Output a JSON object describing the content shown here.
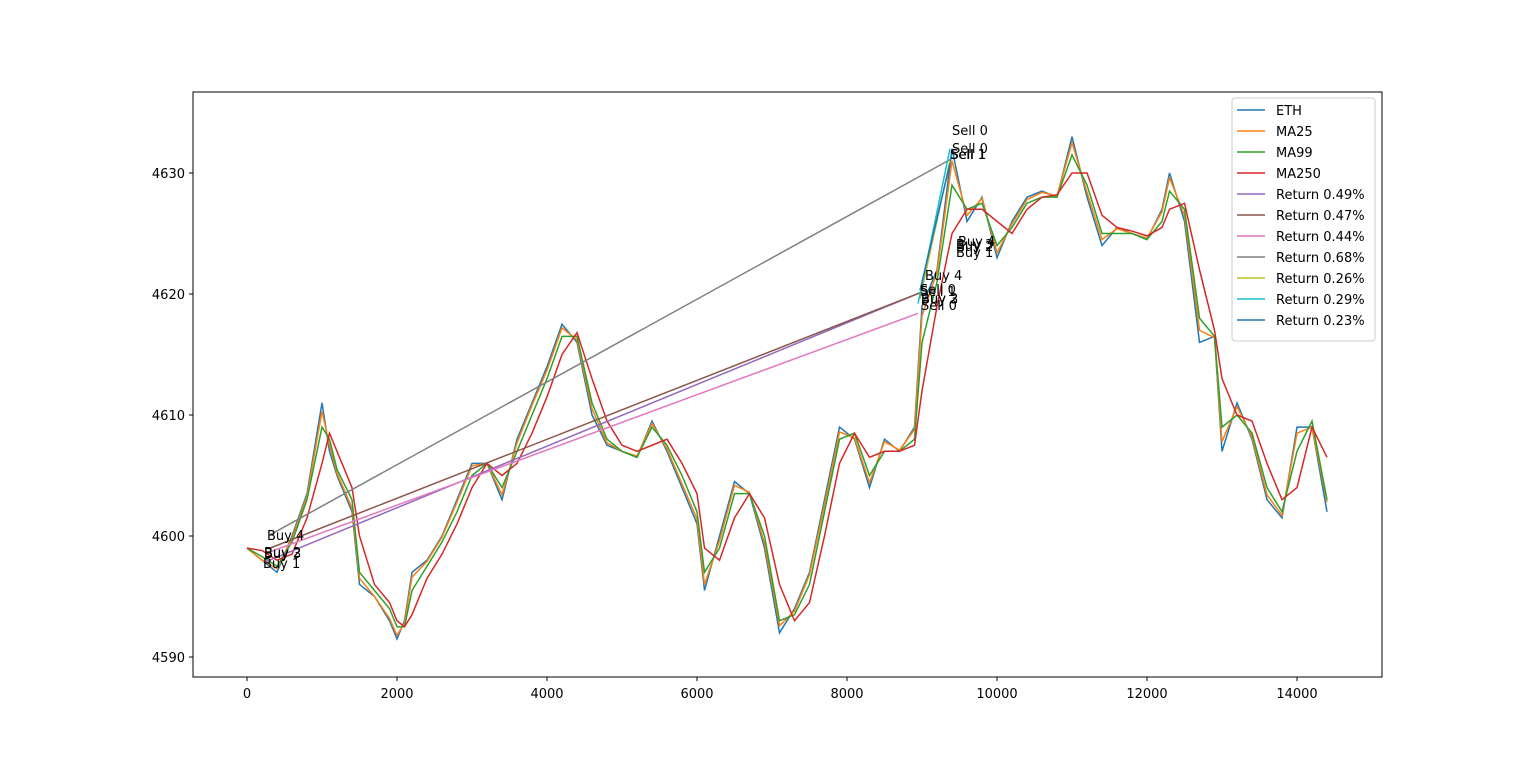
{
  "chart_data": {
    "type": "line",
    "x": [
      0,
      200,
      400,
      600,
      800,
      1000,
      1100,
      1200,
      1400,
      1500,
      1700,
      1900,
      2000,
      2100,
      2200,
      2400,
      2600,
      2800,
      3000,
      3200,
      3400,
      3600,
      3800,
      4000,
      4200,
      4400,
      4600,
      4800,
      5000,
      5200,
      5400,
      5600,
      5800,
      6000,
      6100,
      6300,
      6500,
      6700,
      6900,
      7100,
      7300,
      7500,
      7700,
      7900,
      8100,
      8300,
      8500,
      8700,
      8900,
      9000,
      9200,
      9400,
      9600,
      9800,
      10000,
      10200,
      10400,
      10600,
      10800,
      11000,
      11200,
      11400,
      11600,
      11800,
      12000,
      12200,
      12300,
      12500,
      12700,
      12900,
      13000,
      13200,
      13400,
      13600,
      13800,
      14000,
      14200,
      14400
    ],
    "series": [
      {
        "name": "ETH",
        "color": "#1f77b4",
        "values": [
          4599,
          4598,
          4597,
          4600,
          4603.5,
          4611,
          4607,
          4605,
          4602,
          4596,
          4595,
          4593,
          4591.5,
          4593,
          4597,
          4598,
          4600,
          4603,
          4606,
          4606,
          4603,
          4608,
          4611,
          4614,
          4617.5,
          4616,
          4610,
          4607.5,
          4607,
          4606.5,
          4609.5,
          4607,
          4604,
          4601,
          4595.5,
          4600,
          4604.5,
          4603.5,
          4599,
          4592,
          4594,
          4597,
          4603,
          4609,
          4608,
          4604,
          4608,
          4607,
          4609,
          4619,
          4622,
          4632,
          4626,
          4628,
          4623,
          4626,
          4628,
          4628.5,
          4628,
          4633,
          4628,
          4624,
          4625.5,
          4625,
          4624.5,
          4627,
          4630,
          4626,
          4616,
          4616.5,
          4607,
          4611,
          4608,
          4603,
          4601.5,
          4609,
          4609,
          4602
        ]
      },
      {
        "name": "MA25",
        "color": "#ff7f0e",
        "values": [
          4599,
          4598,
          4597.3,
          4599.8,
          4603.3,
          4610.3,
          4607.5,
          4605.2,
          4602.3,
          4596.5,
          4595,
          4593.2,
          4591.8,
          4592.8,
          4596.6,
          4597.9,
          4599.9,
          4602.8,
          4605.8,
          4606,
          4603.4,
          4607.7,
          4610.8,
          4613.7,
          4617.2,
          4616.2,
          4610.5,
          4607.7,
          4607,
          4606.6,
          4609.3,
          4607.2,
          4604.3,
          4601.4,
          4596,
          4599.6,
          4604.2,
          4603.6,
          4599.4,
          4592.6,
          4593.8,
          4596.8,
          4602.6,
          4608.6,
          4608.1,
          4604.4,
          4607.8,
          4607.1,
          4608.8,
          4618.2,
          4621.8,
          4631,
          4626.5,
          4627.9,
          4623.4,
          4625.8,
          4627.8,
          4628.4,
          4628.1,
          4632.5,
          4628.4,
          4624.5,
          4625.4,
          4625,
          4624.6,
          4626.8,
          4629.6,
          4626.5,
          4617,
          4616.4,
          4607.8,
          4610.7,
          4608.2,
          4603.4,
          4601.7,
          4608.5,
          4609,
          4602.8
        ]
      },
      {
        "name": "MA99",
        "color": "#2ca02c",
        "values": [
          4599,
          4598.3,
          4597.5,
          4599.5,
          4603,
          4609,
          4608,
          4605.5,
          4603,
          4597,
          4595.5,
          4594,
          4592.5,
          4592.5,
          4595.5,
          4597.5,
          4599.5,
          4602,
          4605,
          4606,
          4604,
          4607,
          4610,
          4613,
          4616.5,
          4616.5,
          4611,
          4608,
          4607,
          4606.5,
          4609,
          4607.5,
          4605,
          4602,
          4597,
          4599,
          4603.5,
          4603.5,
          4600,
          4593,
          4593.5,
          4596,
          4602,
          4608,
          4608.5,
          4605,
          4607,
          4607,
          4608,
          4616,
          4621,
          4629,
          4627,
          4627.5,
          4624,
          4625.5,
          4627.5,
          4628,
          4628,
          4631.5,
          4629,
          4625,
          4625,
          4625,
          4624.5,
          4626,
          4628.5,
          4627,
          4618,
          4616.5,
          4609,
          4610,
          4608.5,
          4604,
          4602,
          4607,
          4609.5,
          4603
        ]
      },
      {
        "name": "MA250",
        "color": "#d62728",
        "values": [
          4599,
          4598.8,
          4598,
          4598.5,
          4601.5,
          4606,
          4608.5,
          4607,
          4604,
          4600,
          4596,
          4594.5,
          4593,
          4592.5,
          4593.5,
          4596.5,
          4598.5,
          4601,
          4604,
          4606,
          4605,
          4606,
          4608.5,
          4611.5,
          4615,
          4616.8,
          4613,
          4609.5,
          4607.5,
          4607,
          4607.5,
          4608,
          4606,
          4603.5,
          4599,
          4598,
          4601.5,
          4603.5,
          4601.5,
          4596,
          4593,
          4594.5,
          4600,
          4606,
          4608.5,
          4606.5,
          4607,
          4607,
          4607.5,
          4612,
          4619,
          4625,
          4627,
          4627,
          4626,
          4625,
          4627,
          4628,
          4628.2,
          4630,
          4630,
          4626.5,
          4625.5,
          4625.2,
          4624.8,
          4625.5,
          4627,
          4627.5,
          4622,
          4617,
          4613,
          4610,
          4609.5,
          4606,
          4603,
          4604,
          4609,
          4606.5
        ]
      },
      {
        "name": "Return 0.49%",
        "color": "#9467bd",
        "x": [
          240,
          8973
        ],
        "values": [
          4597.85,
          4620.1
        ]
      },
      {
        "name": "Return 0.47%",
        "color": "#8c564b",
        "x": [
          307,
          8973
        ],
        "values": [
          4599.0,
          4620.1
        ]
      },
      {
        "name": "Return 0.44%",
        "color": "#e377c2",
        "x": [
          267,
          8947
        ],
        "values": [
          4598.6,
          4618.4
        ]
      },
      {
        "name": "Return 0.68%",
        "color": "#7f7f7f",
        "x": [
          307,
          9373
        ],
        "values": [
          4600.1,
          4631.1
        ]
      },
      {
        "name": "Return 0.26%",
        "color": "#bcbd22",
        "x": [
          8973,
          9373
        ],
        "values": [
          4619.6,
          4631.0
        ]
      },
      {
        "name": "Return 0.29%",
        "color": "#17becf",
        "x": [
          8947,
          9373
        ],
        "values": [
          4619.2,
          4632.0
        ]
      },
      {
        "name": "Return 0.23%",
        "color": "#1f77b4",
        "x": [
          8973,
          9373
        ],
        "values": [
          4620.3,
          4630.8
        ]
      }
    ],
    "annotations": [
      {
        "text": "Buy 1",
        "x": 213,
        "y": 4597.36
      },
      {
        "text": "Buy 2",
        "x": 227,
        "y": 4598.26
      },
      {
        "text": "Buy 3",
        "x": 227,
        "y": 4598.2
      },
      {
        "text": "Buy 4",
        "x": 267,
        "y": 4599.67
      },
      {
        "text": "Sell 0",
        "x": 9400,
        "y": 4633.14
      },
      {
        "text": "Sell 0",
        "x": 9400,
        "y": 4631.65
      },
      {
        "text": "Sell 1",
        "x": 9373,
        "y": 4631.16
      },
      {
        "text": "Sell 1",
        "x": 9380,
        "y": 4631.16
      },
      {
        "text": "Buy 4",
        "x": 9040,
        "y": 4621.16
      },
      {
        "text": "Sell 0",
        "x": 8973,
        "y": 4620.0
      },
      {
        "text": "Sell 1",
        "x": 8973,
        "y": 4619.85
      },
      {
        "text": "Buy 2",
        "x": 8987,
        "y": 4619.26
      },
      {
        "text": "Buy 3",
        "x": 8987,
        "y": 4619.2
      },
      {
        "text": "Sell 0",
        "x": 8987,
        "y": 4618.68
      },
      {
        "text": "Buy 4",
        "x": 9480,
        "y": 4623.97
      },
      {
        "text": "Buy 3",
        "x": 9453,
        "y": 4623.72
      },
      {
        "text": "Buy 2",
        "x": 9453,
        "y": 4623.55
      },
      {
        "text": "Buy 1",
        "x": 9453,
        "y": 4623.06
      }
    ],
    "xlim": [
      -720,
      15133
    ],
    "ylim": [
      4588.35,
      4636.69
    ],
    "xticks": [
      0,
      2000,
      4000,
      6000,
      8000,
      10000,
      12000,
      14000
    ],
    "yticks": [
      4590,
      4600,
      4610,
      4620,
      4630
    ],
    "legend": "upper right"
  }
}
